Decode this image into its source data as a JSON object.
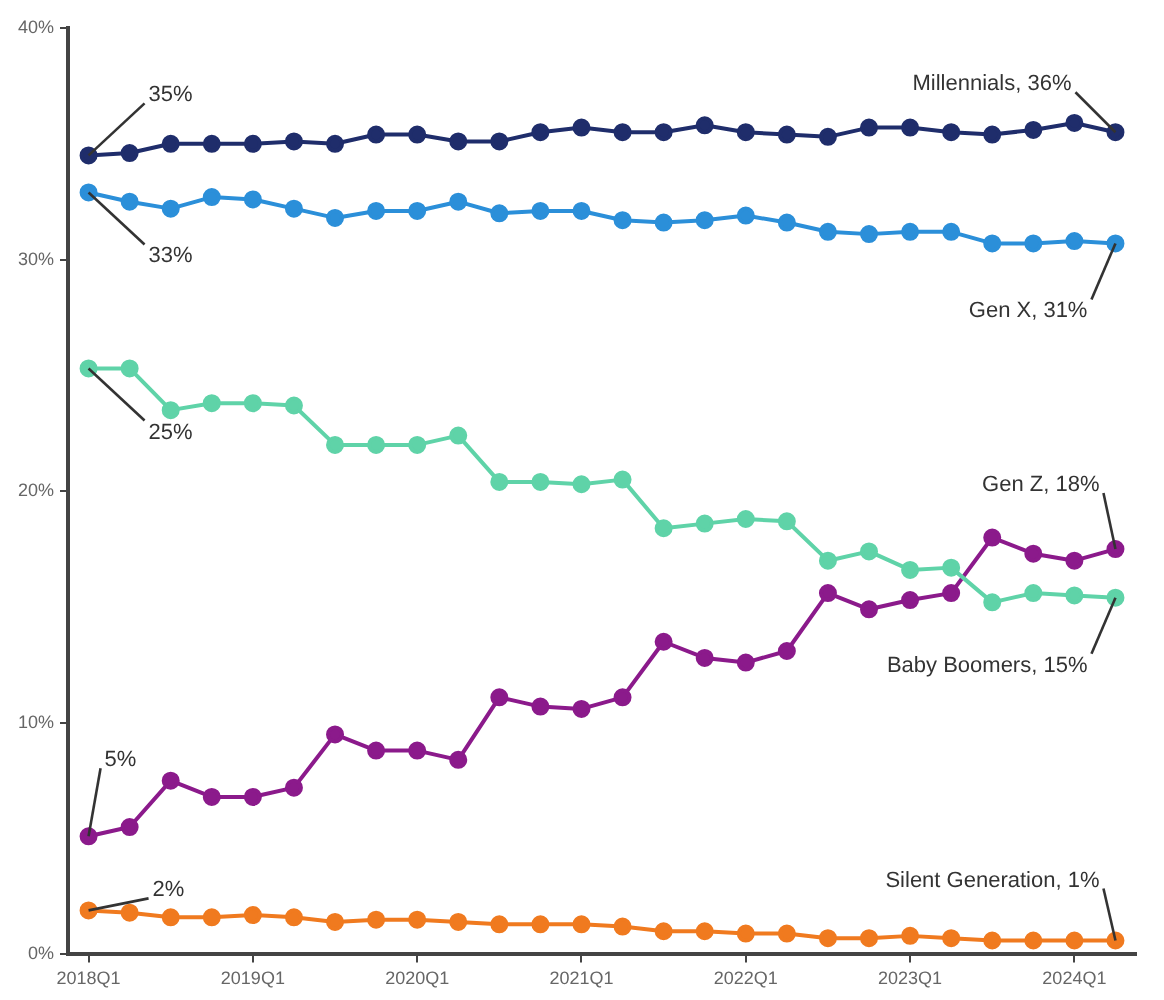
{
  "chart_data": {
    "type": "line",
    "categories": [
      "2018Q1",
      null,
      null,
      null,
      "2019Q1",
      null,
      null,
      null,
      "2020Q1",
      null,
      null,
      null,
      "2021Q1",
      null,
      null,
      null,
      "2022Q1",
      null,
      null,
      null,
      "2023Q1",
      null,
      null,
      null,
      "2024Q1",
      null
    ],
    "series": [
      {
        "color": "#1f2d6b",
        "values": [
          34.5,
          34.6,
          35.0,
          35.0,
          35.0,
          35.1,
          35.0,
          35.4,
          35.4,
          35.1,
          35.1,
          35.5,
          35.7,
          35.5,
          35.5,
          35.8,
          35.5,
          35.4,
          35.3,
          35.7,
          35.7,
          35.5,
          35.4,
          35.6,
          35.9,
          35.5
        ]
      },
      {
        "color": "#2b8fd9",
        "values": [
          32.9,
          32.5,
          32.2,
          32.7,
          32.6,
          32.2,
          31.8,
          32.1,
          32.1,
          32.5,
          32.0,
          32.1,
          32.1,
          31.7,
          31.6,
          31.7,
          31.9,
          31.6,
          31.2,
          31.1,
          31.2,
          31.2,
          30.7,
          30.7,
          30.8,
          30.7
        ]
      },
      {
        "color": "#5fd3a8",
        "values": [
          25.3,
          25.3,
          23.5,
          23.8,
          23.8,
          23.7,
          22.0,
          22.0,
          22.0,
          22.4,
          20.4,
          20.4,
          20.3,
          20.5,
          18.4,
          18.6,
          18.8,
          18.7,
          17.0,
          17.4,
          16.6,
          16.7,
          15.2,
          15.6,
          15.5,
          15.4
        ]
      },
      {
        "color": "#8b1a8b",
        "values": [
          5.1,
          5.5,
          7.5,
          6.8,
          6.8,
          7.2,
          9.5,
          8.8,
          8.8,
          8.4,
          11.1,
          10.7,
          10.6,
          11.1,
          13.5,
          12.8,
          12.6,
          13.1,
          15.6,
          14.9,
          15.3,
          15.6,
          18.0,
          17.3,
          17.0,
          17.5
        ]
      },
      {
        "color": "#f07a1f",
        "values": [
          1.9,
          1.8,
          1.6,
          1.6,
          1.7,
          1.6,
          1.4,
          1.5,
          1.5,
          1.4,
          1.3,
          1.3,
          1.3,
          1.2,
          1.0,
          1.0,
          0.9,
          0.9,
          0.7,
          0.7,
          0.8,
          0.7,
          0.6,
          0.6,
          0.6,
          0.6
        ]
      }
    ],
    "ylim": [
      0,
      40
    ],
    "yticks": [
      {
        "value": 0,
        "label": "0%"
      },
      {
        "value": 10,
        "label": "10%"
      },
      {
        "value": 20,
        "label": "20%"
      },
      {
        "value": 30,
        "label": "30%"
      },
      {
        "value": 40,
        "label": "40%"
      }
    ],
    "grid": false,
    "legend": false,
    "marker": "circle",
    "line_style": "solid",
    "annotations": [
      {
        "text": "35%",
        "x": "2018Q1",
        "y": 34.5
      },
      {
        "text": "33%",
        "x": "2018Q1",
        "y": 32.9
      },
      {
        "text": "25%",
        "x": "2018Q1",
        "y": 25.3
      },
      {
        "text": "5%",
        "x": "2018Q1",
        "y": 5.1
      },
      {
        "text": "2%",
        "x": "2018Q1",
        "y": 1.9
      },
      {
        "text": "Millennials, 36%",
        "y": 35.5
      },
      {
        "text": "Gen X, 31%",
        "y": 30.7
      },
      {
        "text": "Gen Z, 18%",
        "y": 17.5
      },
      {
        "text": "Baby Boomers, 15%",
        "y": 15.4
      },
      {
        "text": "Silent Generation, 1%",
        "y": 0.6
      }
    ]
  }
}
